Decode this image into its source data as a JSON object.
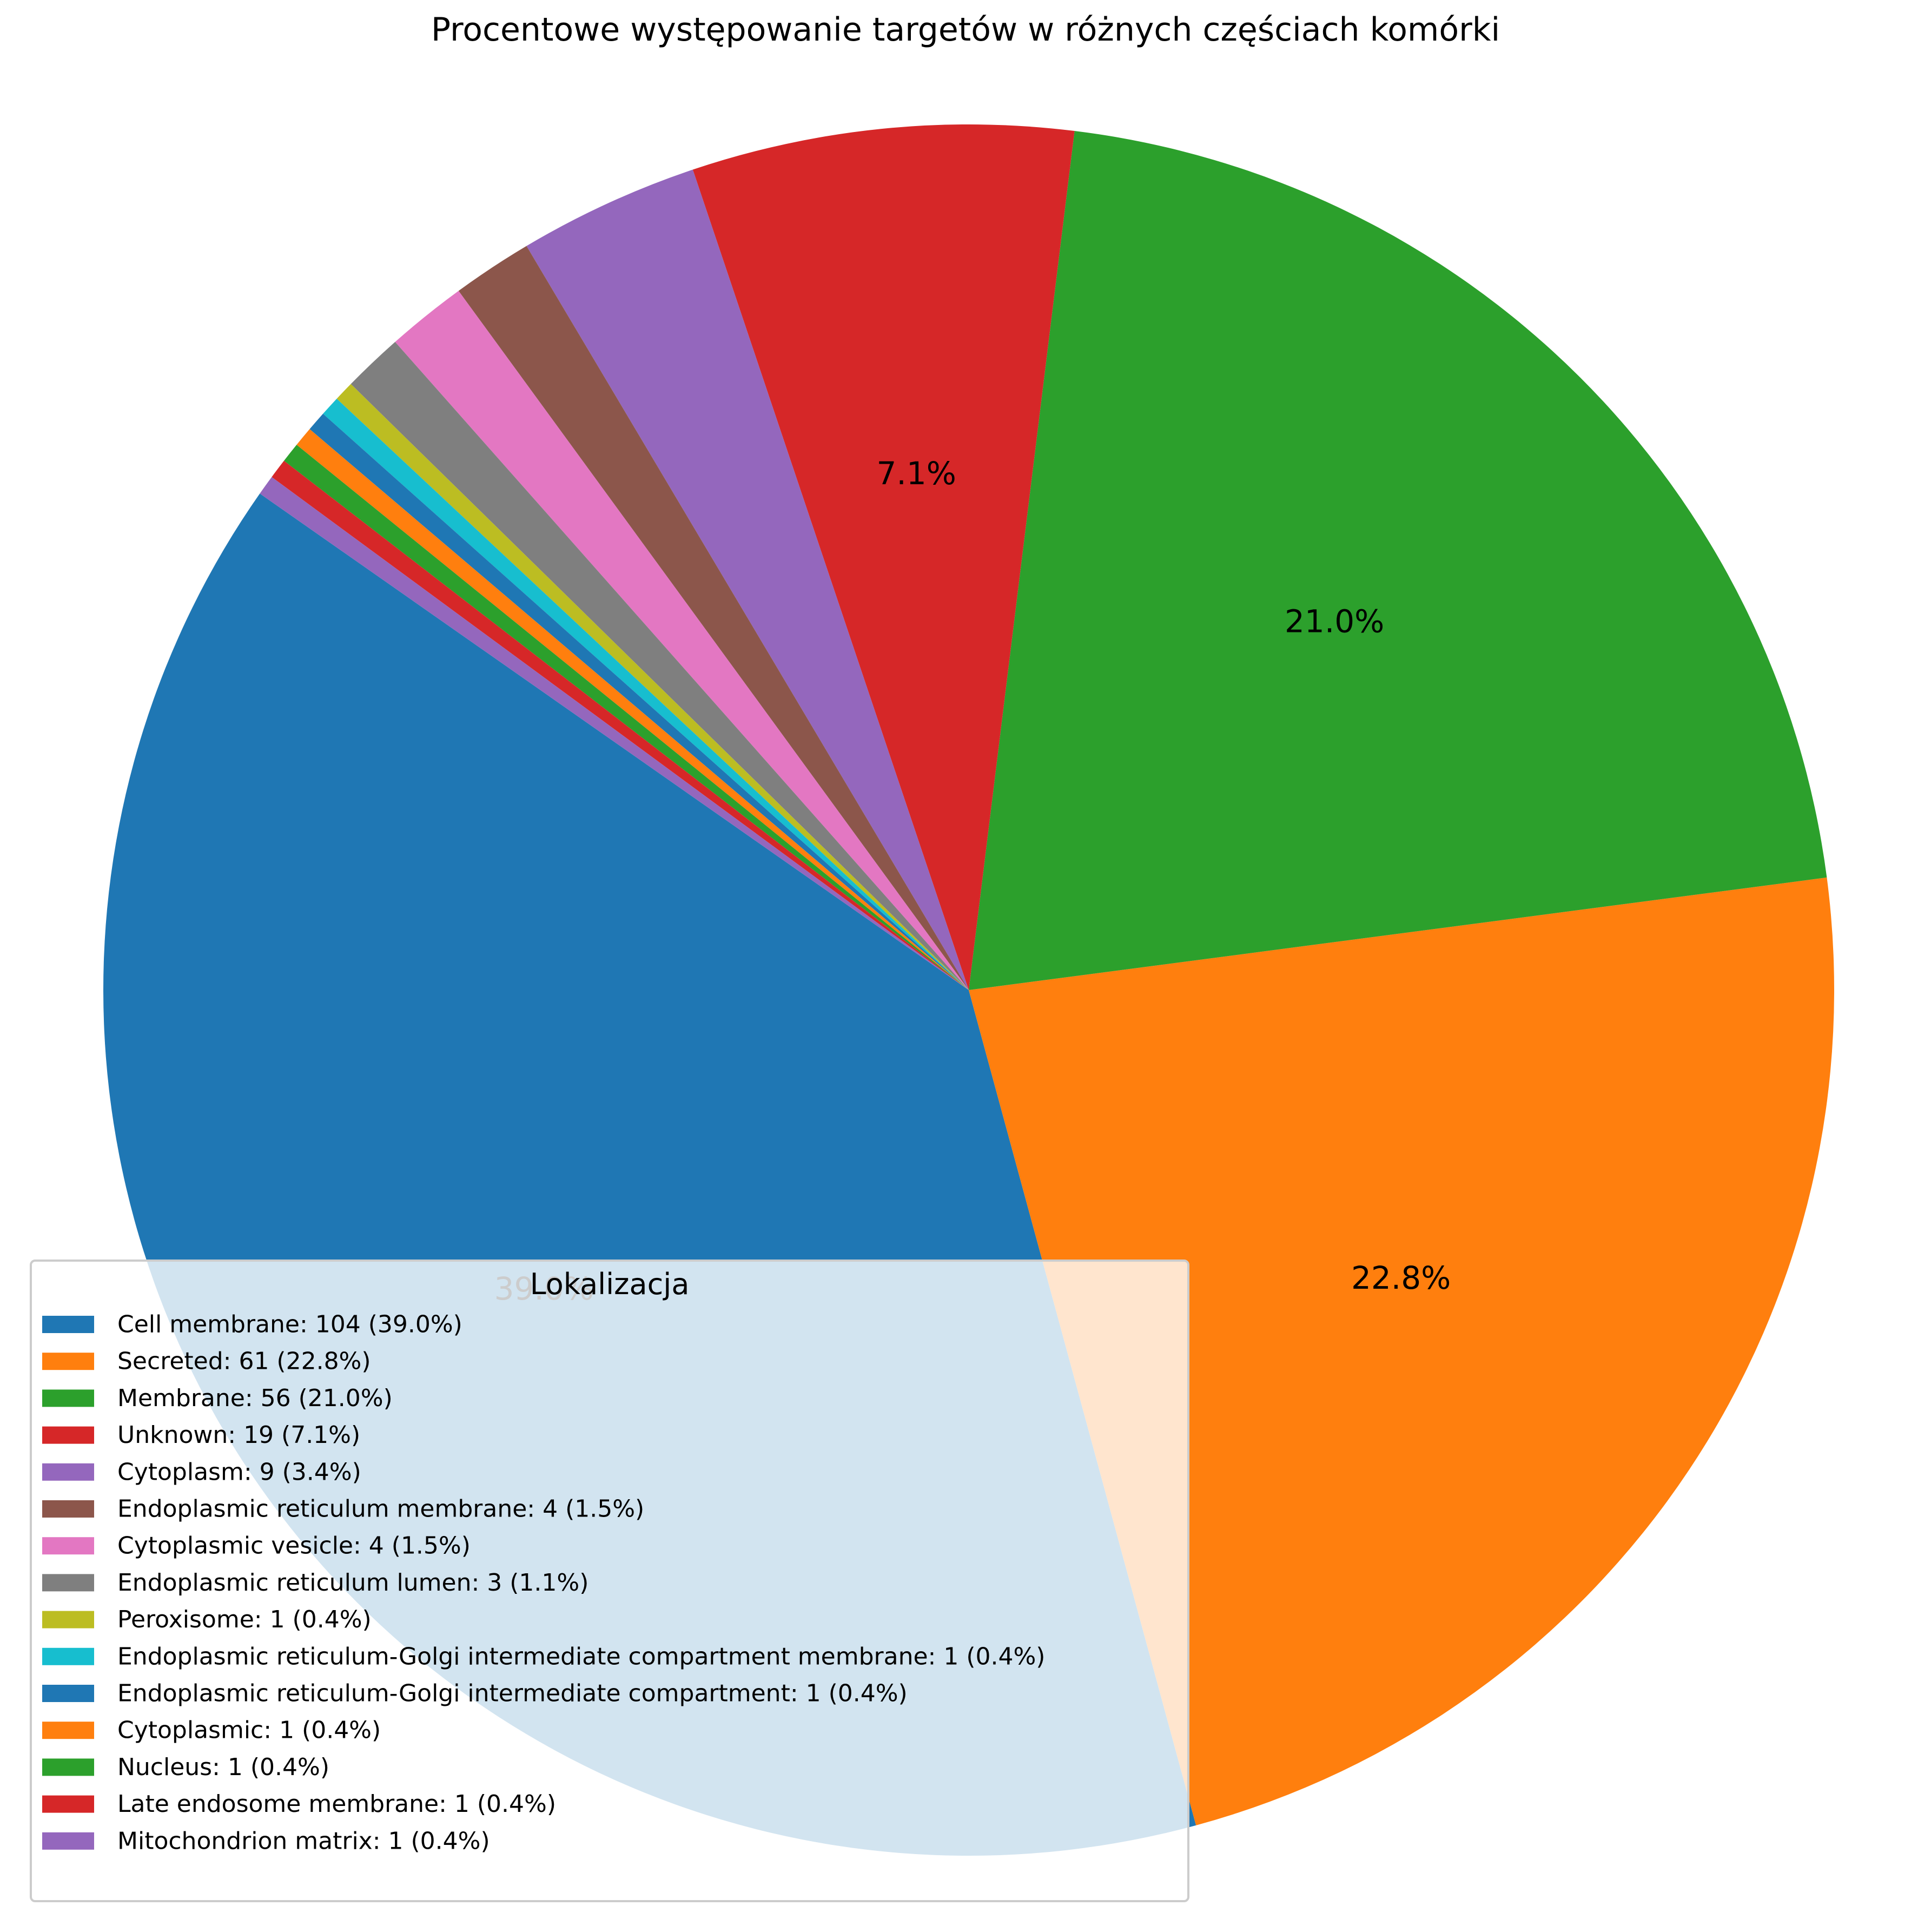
{
  "chart_data": {
    "type": "pie",
    "title": "Procentowe występowanie targetów w różnych częściach komórki",
    "legend_title": "Lokalizacja",
    "legend_position": "lower-left",
    "start_angle_deg": 145,
    "direction": "counterclockwise",
    "autopct_threshold": 5,
    "series": [
      {
        "label": "Cell membrane",
        "value": 104,
        "percent": "39.0%",
        "color": "#1f77b4",
        "legend": "Cell membrane: 104 (39.0%)"
      },
      {
        "label": "Secreted",
        "value": 61,
        "percent": "22.8%",
        "color": "#ff7f0e",
        "legend": "Secreted: 61 (22.8%)"
      },
      {
        "label": "Membrane",
        "value": 56,
        "percent": "21.0%",
        "color": "#2ca02c",
        "legend": "Membrane: 56 (21.0%)"
      },
      {
        "label": "Unknown",
        "value": 19,
        "percent": "7.1%",
        "color": "#d62728",
        "legend": "Unknown: 19 (7.1%)"
      },
      {
        "label": "Cytoplasm",
        "value": 9,
        "percent": "3.4%",
        "color": "#9467bd",
        "legend": "Cytoplasm: 9 (3.4%)"
      },
      {
        "label": "Endoplasmic reticulum membrane",
        "value": 4,
        "percent": "1.5%",
        "color": "#8c564b",
        "legend": "Endoplasmic reticulum membrane: 4 (1.5%)"
      },
      {
        "label": "Cytoplasmic vesicle",
        "value": 4,
        "percent": "1.5%",
        "color": "#e377c2",
        "legend": "Cytoplasmic vesicle: 4 (1.5%)"
      },
      {
        "label": "Endoplasmic reticulum lumen",
        "value": 3,
        "percent": "1.1%",
        "color": "#7f7f7f",
        "legend": "Endoplasmic reticulum lumen: 3 (1.1%)"
      },
      {
        "label": "Peroxisome",
        "value": 1,
        "percent": "0.4%",
        "color": "#bcbd22",
        "legend": "Peroxisome: 1 (0.4%)"
      },
      {
        "label": "Endoplasmic reticulum-Golgi intermediate compartment membrane",
        "value": 1,
        "percent": "0.4%",
        "color": "#17becf",
        "legend": "Endoplasmic reticulum-Golgi intermediate compartment membrane: 1 (0.4%)"
      },
      {
        "label": "Endoplasmic reticulum-Golgi intermediate compartment",
        "value": 1,
        "percent": "0.4%",
        "color": "#1f77b4",
        "legend": "Endoplasmic reticulum-Golgi intermediate compartment: 1 (0.4%)"
      },
      {
        "label": "Cytoplasmic",
        "value": 1,
        "percent": "0.4%",
        "color": "#ff7f0e",
        "legend": "Cytoplasmic: 1 (0.4%)"
      },
      {
        "label": "Nucleus",
        "value": 1,
        "percent": "0.4%",
        "color": "#2ca02c",
        "legend": "Nucleus: 1 (0.4%)"
      },
      {
        "label": "Late endosome membrane",
        "value": 1,
        "percent": "0.4%",
        "color": "#d62728",
        "legend": "Late endosome membrane: 1 (0.4%)"
      },
      {
        "label": "Mitochondrion matrix",
        "value": 1,
        "percent": "0.4%",
        "color": "#9467bd",
        "legend": "Mitochondrion matrix: 1 (0.4%)"
      }
    ]
  }
}
